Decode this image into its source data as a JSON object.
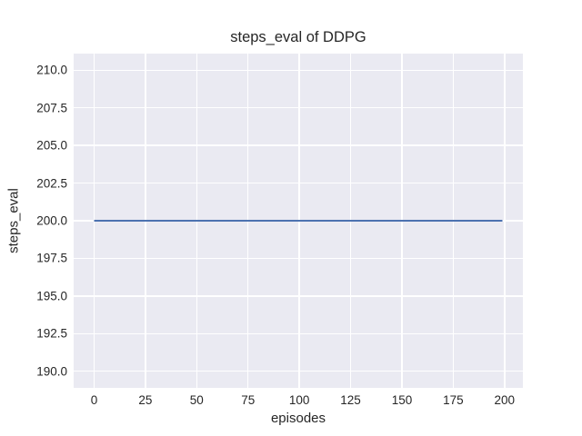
{
  "figure": {
    "background": "#ffffff",
    "axes_background": "#eaeaf2",
    "grid_color": "#ffffff",
    "text_color": "#262626"
  },
  "chart_data": {
    "type": "line",
    "title": "steps_eval of DDPG",
    "xlabel": "episodes",
    "ylabel": "steps_eval",
    "xlim": [
      -9.95,
      208.95
    ],
    "ylim": [
      188.9,
      211.1
    ],
    "xticks": [
      0,
      25,
      50,
      75,
      100,
      125,
      150,
      175,
      200
    ],
    "xtick_labels": [
      "0",
      "25",
      "50",
      "75",
      "100",
      "125",
      "150",
      "175",
      "200"
    ],
    "yticks": [
      190.0,
      192.5,
      195.0,
      197.5,
      200.0,
      202.5,
      205.0,
      207.5,
      210.0
    ],
    "ytick_labels": [
      "190.0",
      "192.5",
      "195.0",
      "197.5",
      "200.0",
      "202.5",
      "205.0",
      "207.5",
      "210.0"
    ],
    "grid": true,
    "legend": "none",
    "series": [
      {
        "name": "DDPG",
        "color": "#4c72b0",
        "line_width": 2.1,
        "x": [
          0,
          199
        ],
        "y": [
          200,
          200
        ]
      }
    ]
  }
}
